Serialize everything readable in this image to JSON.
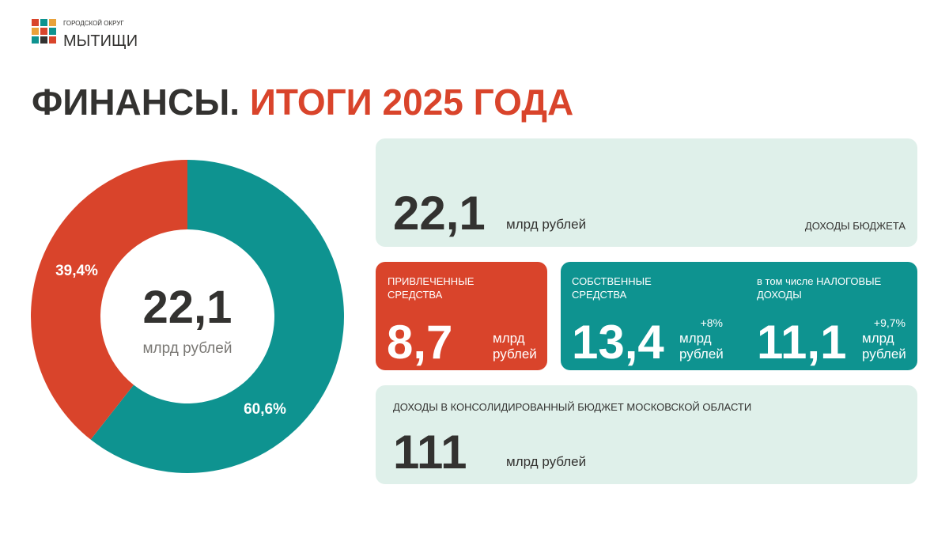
{
  "header": {
    "logo_subtitle": "ГОРОДСКОЙ ОКРУГ",
    "logo_title": "МЫТИЩИ"
  },
  "title": {
    "part1": "ФИНАНСЫ.",
    "part2": "ИТОГИ 2025 ГОДА"
  },
  "chart_data": {
    "type": "pie",
    "donut": true,
    "values": [
      60.6,
      39.4
    ],
    "value_labels": [
      "60,6%",
      "39,4%"
    ],
    "colors": [
      "#0e9390",
      "#d9442b"
    ],
    "center_value": "22,1",
    "center_unit": "млрд рублей"
  },
  "cards": [
    {
      "value": "22,1",
      "unit": "млрд рублей",
      "label": [
        "ДОХОДЫ БЮДЖЕТА"
      ]
    },
    {
      "label": [
        "ПРИВЛЕЧЕННЫЕ",
        "СРЕДСТВА"
      ],
      "value": "8,7",
      "unit": [
        "млрд",
        "рублей"
      ]
    },
    {
      "label": [
        "СОБСТВЕННЫЕ",
        "СРЕДСТВА"
      ],
      "value": "13,4",
      "change": "+8%",
      "unit": [
        "млрд",
        "рублей"
      ]
    },
    {
      "label": [
        "в том числе НАЛОГОВЫЕ",
        "ДОХОДЫ"
      ],
      "value": "11,1",
      "change": "+9,7%",
      "unit": [
        "млрд",
        "рублей"
      ]
    },
    {
      "label": [
        "ДОХОДЫ В КОНСОЛИДИРОВАННЫЙ БЮДЖЕТ МОСКОВСКОЙ ОБЛАСТИ"
      ],
      "value": "111",
      "unit": "млрд рублей"
    }
  ]
}
